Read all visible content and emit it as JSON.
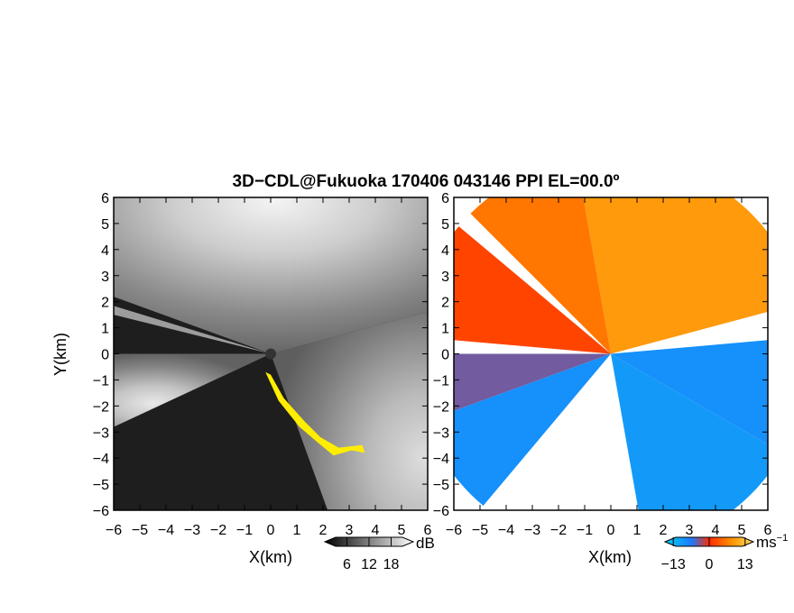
{
  "figure": {
    "title": "3D−CDL@Fukuoka 170406 043146 PPI EL=00.0º"
  },
  "chart_data": [
    {
      "type": "heatmap",
      "name": "reflectivity",
      "xlabel": "X(km)",
      "ylabel": "Y(km)",
      "xlim": [
        -6,
        6
      ],
      "ylim": [
        -6,
        6
      ],
      "xticks": [
        "−6",
        "−5",
        "−4",
        "−3",
        "−2",
        "−1",
        "0",
        "1",
        "2",
        "3",
        "4",
        "5",
        "6"
      ],
      "yticks": [
        "6",
        "5",
        "4",
        "3",
        "2",
        "1",
        "0",
        "−1",
        "−2",
        "−3",
        "−4",
        "−5",
        "−6"
      ],
      "colorbar": {
        "unit": "dB",
        "ticks": [
          "6",
          "12",
          "18"
        ],
        "values": [
          6,
          12,
          18
        ],
        "range": [
          0,
          24
        ]
      },
      "colors": {
        "background": "#1e1e1e",
        "max": "#ffffff",
        "flagged": "#ffee00"
      },
      "clutter_region": [
        {
          "x": -0.2,
          "y": -0.7
        },
        {
          "x": 0.3,
          "y": -1.8
        },
        {
          "x": 1.1,
          "y": -2.8
        },
        {
          "x": 1.8,
          "y": -3.4
        },
        {
          "x": 2.4,
          "y": -3.9
        },
        {
          "x": 3.1,
          "y": -3.7
        },
        {
          "x": 3.6,
          "y": -3.8
        },
        {
          "x": 3.5,
          "y": -3.5
        },
        {
          "x": 2.6,
          "y": -3.6
        },
        {
          "x": 1.9,
          "y": -3.2
        },
        {
          "x": 1.3,
          "y": -2.6
        },
        {
          "x": 0.5,
          "y": -1.7
        },
        {
          "x": 0.0,
          "y": -0.8
        }
      ]
    },
    {
      "type": "heatmap",
      "name": "doppler_velocity",
      "xlabel": "X(km)",
      "xlim": [
        -6,
        6
      ],
      "ylim": [
        -6,
        6
      ],
      "xticks": [
        "−6",
        "−5",
        "−4",
        "−3",
        "−2",
        "−1",
        "0",
        "1",
        "2",
        "3",
        "4",
        "5",
        "6"
      ],
      "colorbar": {
        "unit": "ms",
        "unit_sup": "−1",
        "ticks": [
          "−13",
          "0",
          "13"
        ],
        "values": [
          -13,
          0,
          13
        ],
        "range": [
          -16,
          16
        ]
      },
      "colors": {
        "negative": "#1e78ff",
        "near_zero": "#ff2a00",
        "positive": "#ffa000",
        "light_positive": "#ffd24a",
        "cyan": "#00d2f0"
      },
      "sectors": [
        {
          "from_deg": 15,
          "to_deg": 100,
          "velocity": 9
        },
        {
          "from_deg": 100,
          "to_deg": 135,
          "velocity": 6
        },
        {
          "from_deg": 140,
          "to_deg": 175,
          "velocity": 2
        },
        {
          "from_deg": 180,
          "to_deg": 200,
          "velocity": -4
        },
        {
          "from_deg": 200,
          "to_deg": 230,
          "velocity": -9
        },
        {
          "from_deg": 280,
          "to_deg": 330,
          "velocity": -10
        },
        {
          "from_deg": 330,
          "to_deg": 365,
          "velocity": -9
        }
      ]
    }
  ]
}
